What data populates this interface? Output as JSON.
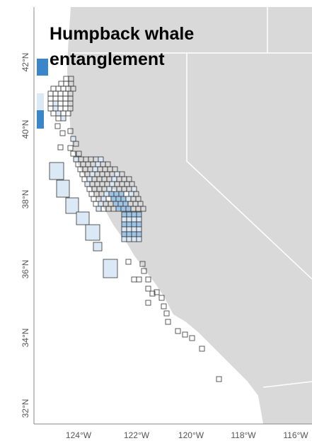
{
  "map": {
    "title_lines": [
      "Humpback whale",
      "entanglement"
    ],
    "lat_ticks": [
      "42°N",
      "40°N",
      "38°N",
      "36°N",
      "34°N",
      "32°N"
    ],
    "lon_ticks": [
      "124°W",
      "122°W",
      "120°W",
      "118°W",
      "116°W"
    ],
    "colors": {
      "land": "#d9d9d9",
      "ocean": "#ffffff",
      "border": "#ffffff",
      "cell_outline": "#333333",
      "cell_light": "#dbe8f5",
      "cell_mid": "#9ec5e6",
      "cell_dark": "#3a86c8"
    },
    "legend": "none"
  }
}
